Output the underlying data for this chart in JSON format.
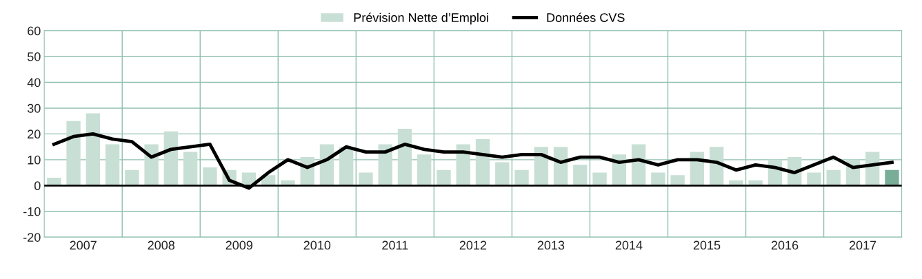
{
  "chart_data": {
    "type": "bar",
    "x": [
      2007.125,
      2007.375,
      2007.625,
      2007.875,
      2008.125,
      2008.375,
      2008.625,
      2008.875,
      2009.125,
      2009.375,
      2009.625,
      2009.875,
      2010.125,
      2010.375,
      2010.625,
      2010.875,
      2011.125,
      2011.375,
      2011.625,
      2011.875,
      2012.125,
      2012.375,
      2012.625,
      2012.875,
      2013.125,
      2013.375,
      2013.625,
      2013.875,
      2014.125,
      2014.375,
      2014.625,
      2014.875,
      2015.125,
      2015.375,
      2015.625,
      2015.875,
      2016.125,
      2016.375,
      2016.625,
      2016.875,
      2017.125,
      2017.375,
      2017.625,
      2017.875
    ],
    "series": [
      {
        "name": "Prévision Nette d’Emploi",
        "color": "#c8dfd5",
        "colors": [
          "#c8dfd5",
          "#c8dfd5",
          "#c8dfd5",
          "#c8dfd5",
          "#c8dfd5",
          "#c8dfd5",
          "#c8dfd5",
          "#c8dfd5",
          "#c8dfd5",
          "#c8dfd5",
          "#c8dfd5",
          "#c8dfd5",
          "#c8dfd5",
          "#c8dfd5",
          "#c8dfd5",
          "#c8dfd5",
          "#c8dfd5",
          "#c8dfd5",
          "#c8dfd5",
          "#c8dfd5",
          "#c8dfd5",
          "#c8dfd5",
          "#c8dfd5",
          "#c8dfd5",
          "#c8dfd5",
          "#c8dfd5",
          "#c8dfd5",
          "#c8dfd5",
          "#c8dfd5",
          "#c8dfd5",
          "#c8dfd5",
          "#c8dfd5",
          "#c8dfd5",
          "#c8dfd5",
          "#c8dfd5",
          "#c8dfd5",
          "#c8dfd5",
          "#c8dfd5",
          "#c8dfd5",
          "#c8dfd5",
          "#c8dfd5",
          "#c8dfd5",
          "#c8dfd5",
          "#78ae98"
        ],
        "values": [
          3,
          25,
          28,
          16,
          6,
          16,
          21,
          13,
          7,
          6,
          5,
          4,
          2,
          11,
          16,
          15,
          5,
          16,
          22,
          12,
          6,
          16,
          18,
          9,
          6,
          15,
          15,
          8,
          5,
          12,
          16,
          5,
          4,
          13,
          15,
          2,
          2,
          10,
          11,
          5,
          6,
          10,
          13,
          6
        ]
      },
      {
        "name": "Données CVS",
        "type": "line",
        "color": "#000000",
        "values": [
          16,
          19,
          20,
          18,
          17,
          11,
          14,
          15,
          16,
          2,
          -1,
          5,
          10,
          7,
          10,
          15,
          13,
          13,
          16,
          14,
          13,
          13,
          12,
          11,
          12,
          12,
          9,
          11,
          11,
          9,
          10,
          8,
          10,
          10,
          9,
          6,
          8,
          7,
          5,
          8,
          11,
          7,
          8,
          9
        ]
      }
    ],
    "xlim": [
      2007,
      2018
    ],
    "xticks": [
      {
        "value": 2007.5,
        "label": "2007"
      },
      {
        "value": 2008.5,
        "label": "2008"
      },
      {
        "value": 2009.5,
        "label": "2009"
      },
      {
        "value": 2010.5,
        "label": "2010"
      },
      {
        "value": 2011.5,
        "label": "2011"
      },
      {
        "value": 2012.5,
        "label": "2012"
      },
      {
        "value": 2013.5,
        "label": "2013"
      },
      {
        "value": 2014.5,
        "label": "2014"
      },
      {
        "value": 2015.5,
        "label": "2015"
      },
      {
        "value": 2016.5,
        "label": "2016"
      },
      {
        "value": 2017.5,
        "label": "2017"
      }
    ],
    "ylim": [
      -20,
      60
    ],
    "yticks": [
      -20,
      -10,
      0,
      10,
      20,
      30,
      40,
      50,
      60
    ],
    "grid": "y",
    "legend": "top",
    "ref_lines": [
      {
        "axis": "y",
        "value": 0,
        "color": "#000000"
      },
      {
        "axis": "x",
        "value": 2008,
        "color": "#8fc0ae"
      },
      {
        "axis": "x",
        "value": 2009,
        "color": "#8fc0ae"
      },
      {
        "axis": "x",
        "value": 2010,
        "color": "#8fc0ae"
      },
      {
        "axis": "x",
        "value": 2011,
        "color": "#8fc0ae"
      },
      {
        "axis": "x",
        "value": 2012,
        "color": "#8fc0ae"
      },
      {
        "axis": "x",
        "value": 2013,
        "color": "#8fc0ae"
      },
      {
        "axis": "x",
        "value": 2014,
        "color": "#8fc0ae"
      },
      {
        "axis": "x",
        "value": 2015,
        "color": "#8fc0ae"
      },
      {
        "axis": "x",
        "value": 2016,
        "color": "#8fc0ae"
      },
      {
        "axis": "x",
        "value": 2017,
        "color": "#8fc0ae"
      }
    ]
  }
}
